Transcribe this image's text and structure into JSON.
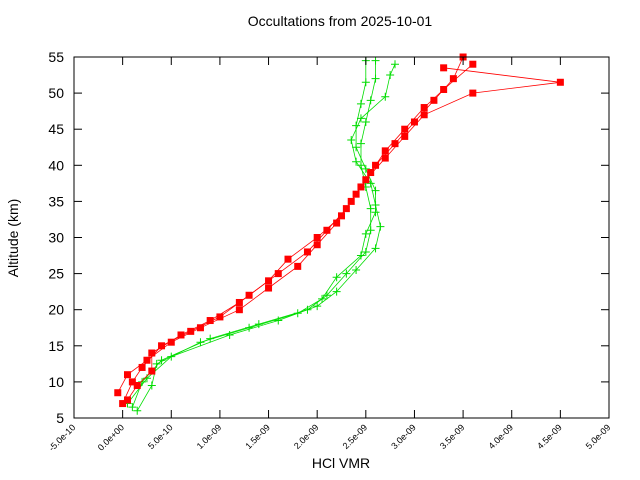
{
  "chart_data": {
    "type": "line",
    "title": "Occultations from 2025-10-01",
    "x_label": "HCl VMR",
    "y_label": "Altitude (km)",
    "xlim": [
      -5e-10,
      5e-09
    ],
    "ylim": [
      5,
      55
    ],
    "xticks": [
      {
        "value": -5e-10,
        "label": "-5.0e-10"
      },
      {
        "value": 0,
        "label": "0.0e+00"
      },
      {
        "value": 5e-10,
        "label": "5.0e-10"
      },
      {
        "value": 1e-09,
        "label": "1.0e-09"
      },
      {
        "value": 1.5e-09,
        "label": "1.5e-09"
      },
      {
        "value": 2e-09,
        "label": "2.0e-09"
      },
      {
        "value": 2.5e-09,
        "label": "2.5e-09"
      },
      {
        "value": 3e-09,
        "label": "3.0e-09"
      },
      {
        "value": 3.5e-09,
        "label": "3.5e-09"
      },
      {
        "value": 4e-09,
        "label": "4.0e-09"
      },
      {
        "value": 4.5e-09,
        "label": "4.5e-09"
      },
      {
        "value": 5e-09,
        "label": "5.0e-09"
      }
    ],
    "yticks": [
      5,
      10,
      15,
      20,
      25,
      30,
      35,
      40,
      45,
      50,
      55
    ],
    "series": [
      {
        "color": "#00dd00",
        "marker": "plus",
        "x": [
          1e-10,
          2e-10,
          4e-10,
          9e-10,
          1.4e-09,
          1.9e-09,
          2.1e-09,
          2.3e-09,
          2.5e-09,
          2.55e-09,
          2.55e-09,
          2.5e-09,
          2.45e-09,
          2.45e-09,
          2.5e-09,
          2.55e-09,
          2.6e-09,
          2.6e-09
        ],
        "values": [
          6.5,
          10,
          13,
          16,
          18,
          20,
          22,
          25,
          28,
          31,
          34,
          37,
          40,
          43,
          46,
          49,
          52,
          54.5
        ]
      },
      {
        "color": "#00dd00",
        "marker": "plus",
        "x": [
          5e-11,
          2.5e-10,
          5e-10,
          1.1e-09,
          1.6e-09,
          2e-09,
          2.2e-09,
          2.4e-09,
          2.6e-09,
          2.65e-09,
          2.6e-09,
          2.55e-09,
          2.4e-09,
          2.35e-09,
          2.45e-09,
          2.7e-09,
          2.75e-09,
          2.8e-09
        ],
        "values": [
          7,
          10.5,
          13.5,
          16.5,
          18.5,
          20.5,
          22.5,
          25.5,
          28.5,
          31.5,
          34.5,
          37.5,
          40.5,
          43.5,
          46.5,
          49.5,
          52.5,
          54
        ]
      },
      {
        "color": "#00dd00",
        "marker": "plus",
        "x": [
          1.5e-10,
          3e-10,
          3.5e-10,
          8e-10,
          1.3e-09,
          1.8e-09,
          2.05e-09,
          2.2e-09,
          2.45e-09,
          2.5e-09,
          2.6e-09,
          2.6e-09,
          2.5e-09,
          2.4e-09,
          2.4e-09,
          2.45e-09,
          2.5e-09,
          2.5e-09
        ],
        "values": [
          6,
          9.5,
          12.5,
          15.5,
          17.5,
          19.5,
          21.5,
          24.5,
          27.5,
          30.5,
          33.5,
          36.5,
          39.5,
          42.5,
          45.5,
          48.5,
          51.5,
          54.5
        ]
      },
      {
        "color": "#ff0000",
        "marker": "square",
        "x": [
          0,
          1e-10,
          2e-10,
          4e-10,
          7e-10,
          1e-09,
          1.3e-09,
          1.6e-09,
          1.9e-09,
          2.1e-09,
          2.3e-09,
          2.45e-09,
          2.6e-09,
          2.8e-09,
          3e-09,
          3.2e-09,
          3.4e-09,
          3.5e-09
        ],
        "values": [
          7,
          10,
          12,
          15,
          17,
          19,
          22,
          25,
          28,
          31,
          34,
          37,
          40,
          43,
          46,
          49,
          52,
          55
        ]
      },
      {
        "color": "#ff0000",
        "marker": "square",
        "x": [
          -5e-11,
          5e-11,
          2.5e-10,
          5e-10,
          8e-10,
          1.2e-09,
          1.5e-09,
          1.8e-09,
          2e-09,
          2.2e-09,
          2.35e-09,
          2.5e-09,
          2.7e-09,
          2.9e-09,
          3.1e-09,
          3.6e-09,
          4.5e-09,
          3.3e-09
        ],
        "values": [
          8.5,
          11,
          13,
          15.5,
          17.5,
          20,
          23,
          26,
          29,
          32,
          35,
          38,
          41,
          44,
          47,
          50,
          51.5,
          53.5
        ]
      },
      {
        "color": "#ff0000",
        "marker": "square",
        "x": [
          5e-11,
          1.5e-10,
          3e-10,
          3e-10,
          6e-10,
          9e-10,
          1.2e-09,
          1.5e-09,
          1.7e-09,
          2e-09,
          2.25e-09,
          2.4e-09,
          2.55e-09,
          2.7e-09,
          2.9e-09,
          3.1e-09,
          3.3e-09,
          3.6e-09
        ],
        "values": [
          7.5,
          9.5,
          11.5,
          14,
          16.5,
          18.5,
          21,
          24,
          27,
          30,
          33,
          36,
          39,
          42,
          45,
          48,
          50.5,
          54
        ]
      }
    ]
  }
}
